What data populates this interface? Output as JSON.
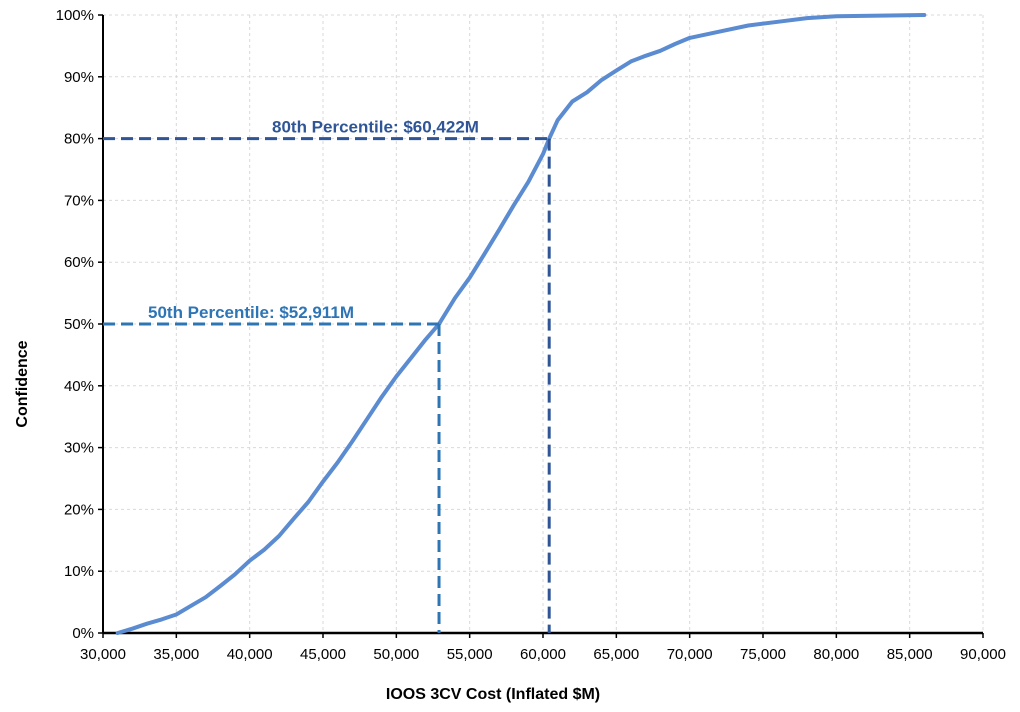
{
  "chart_data": {
    "type": "line",
    "title": "",
    "xlabel": "IOOS 3CV Cost (Inflated $M)",
    "ylabel": "Confidence",
    "xlim": [
      30000,
      90000
    ],
    "ylim": [
      0,
      100
    ],
    "x_ticks": [
      "30,000",
      "35,000",
      "40,000",
      "45,000",
      "50,000",
      "55,000",
      "60,000",
      "65,000",
      "70,000",
      "75,000",
      "80,000",
      "85,000",
      "90,000"
    ],
    "y_ticks": [
      "0%",
      "10%",
      "20%",
      "30%",
      "40%",
      "50%",
      "60%",
      "70%",
      "80%",
      "90%",
      "100%"
    ],
    "grid": true,
    "legend": "none",
    "series": [
      {
        "color": "#5b8bd0",
        "x": [
          31000,
          32000,
          33000,
          34000,
          35000,
          36000,
          37000,
          38000,
          39000,
          40000,
          41000,
          42000,
          43000,
          44000,
          45000,
          46000,
          47000,
          48000,
          49000,
          50000,
          51000,
          52000,
          52911,
          54000,
          55000,
          56000,
          57000,
          58000,
          59000,
          60000,
          60422,
          61000,
          62000,
          63000,
          64000,
          65000,
          66000,
          67000,
          68000,
          69000,
          70000,
          72000,
          74000,
          76000,
          78000,
          80000,
          83000,
          86000
        ],
        "y": [
          0,
          0.7,
          1.5,
          2.2,
          3,
          4.4,
          5.8,
          7.6,
          9.5,
          11.7,
          13.5,
          15.7,
          18.5,
          21.2,
          24.5,
          27.6,
          31,
          34.6,
          38.2,
          41.5,
          44.5,
          47.5,
          50,
          54.2,
          57.5,
          61.3,
          65.2,
          69.2,
          73,
          77.5,
          80,
          83,
          86,
          87.5,
          89.5,
          91,
          92.5,
          93.4,
          94.2,
          95.3,
          96.3,
          97.3,
          98.3,
          98.9,
          99.5,
          99.8,
          99.9,
          100
        ]
      }
    ],
    "annotations": [
      {
        "label": "50th Percentile: $52,911M",
        "x": 52911,
        "y": 50,
        "color": "#2e75b6"
      },
      {
        "label": "80th Percentile: $60,422M",
        "x": 60422,
        "y": 80,
        "color": "#2f5597"
      }
    ]
  }
}
